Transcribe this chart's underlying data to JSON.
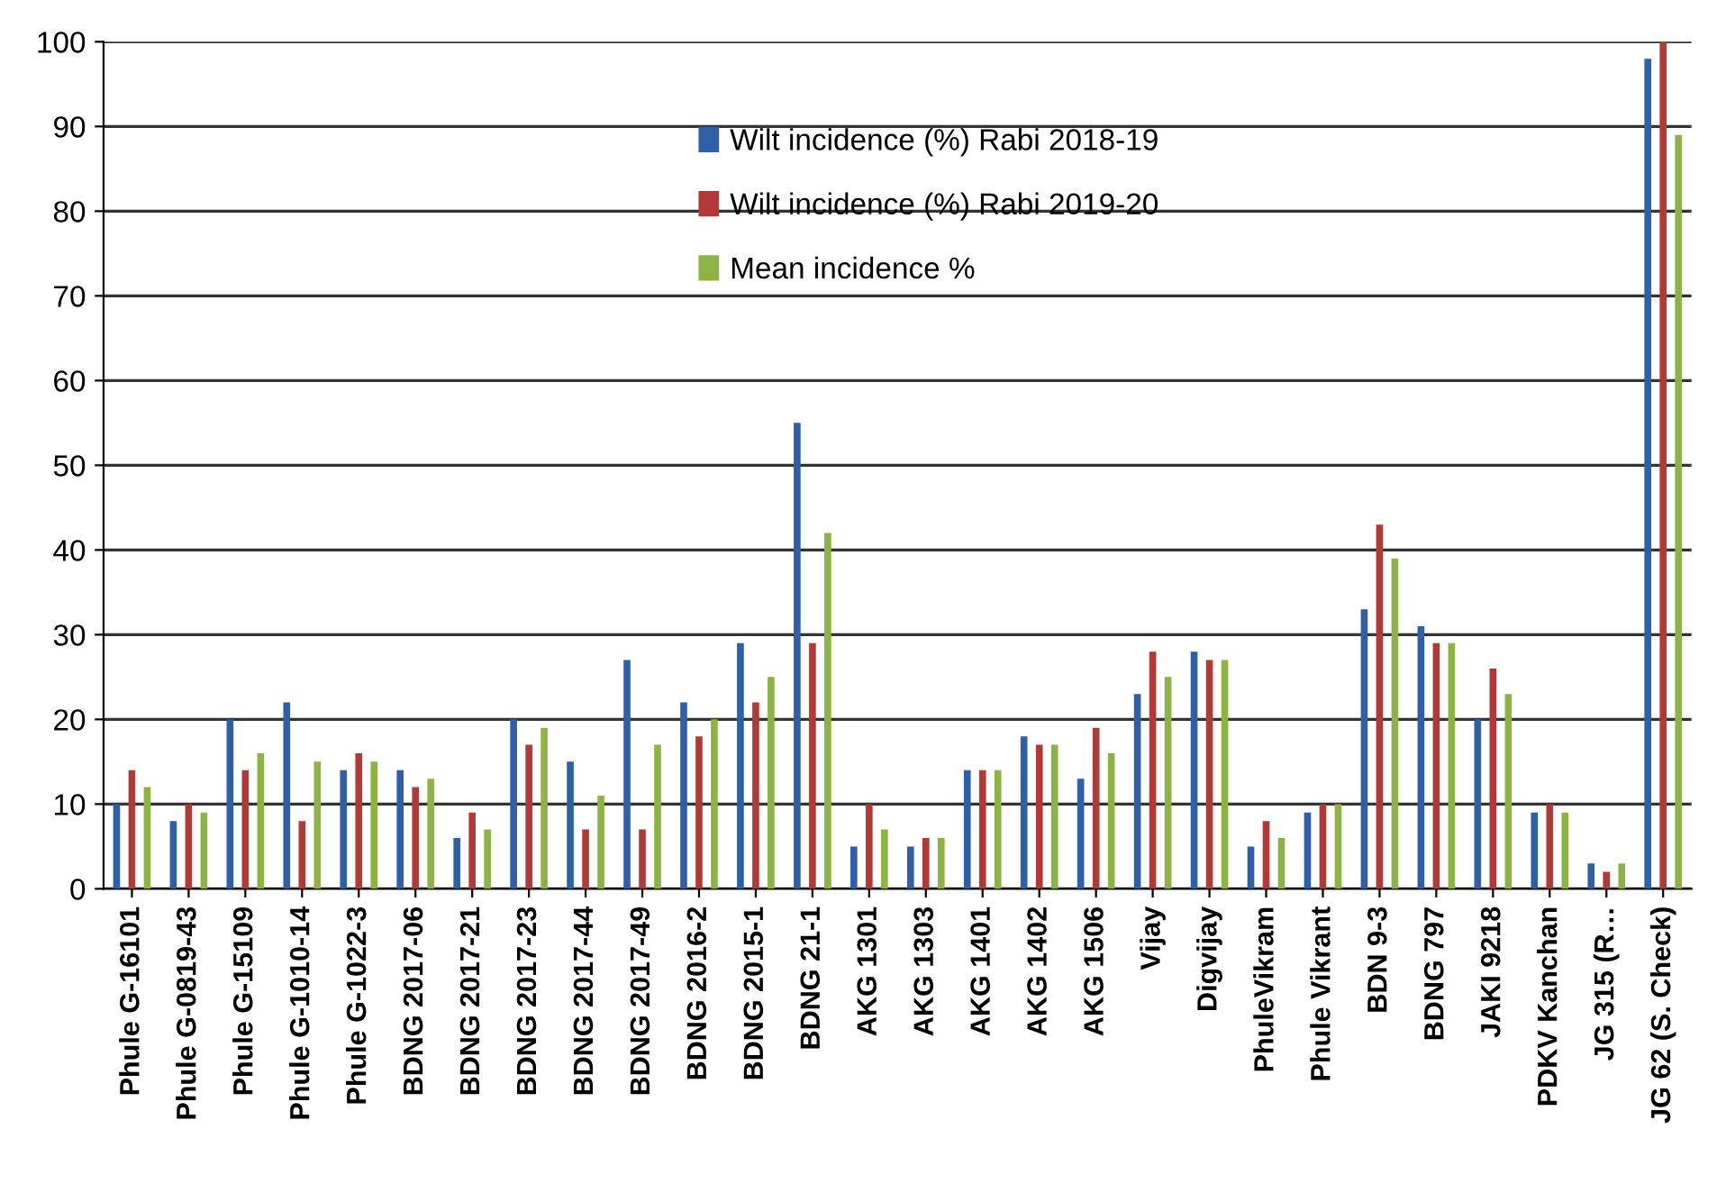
{
  "chart_data": {
    "type": "bar",
    "categories": [
      "Phule G-16101",
      "Phule G-0819-43",
      "Phule G-15109",
      "Phule G-1010-14",
      "Phule G-1022-3",
      "BDNG 2017-06",
      "BDNG 2017-21",
      "BDNG 2017-23",
      "BDNG 2017-44",
      "BDNG 2017-49",
      "BDNG 2016-2",
      "BDNG 2015-1",
      "BDNG 21-1",
      "AKG 1301",
      "AKG 1303",
      "AKG 1401",
      "AKG 1402",
      "AKG 1506",
      "Vijay",
      "Digvijay",
      "PhuleVikram",
      "Phule Vikrant",
      "BDN 9-3",
      "BDNG 797",
      "JAKI 9218",
      "PDKV Kanchan",
      "JG 315 (R…",
      "JG 62 (S. Check)"
    ],
    "series": [
      {
        "name": "Wilt incidence (%) Rabi 2018-19",
        "color": "#2e5fa8",
        "values": [
          10,
          8,
          20,
          22,
          14,
          14,
          6,
          20,
          15,
          27,
          22,
          29,
          55,
          5,
          5,
          14,
          18,
          13,
          23,
          28,
          5,
          9,
          33,
          31,
          20,
          9,
          3,
          98
        ]
      },
      {
        "name": "Wilt incidence (%) Rabi 2019-20",
        "color": "#b23a36",
        "values": [
          14,
          10,
          14,
          8,
          16,
          12,
          9,
          17,
          7,
          7,
          18,
          22,
          29,
          10,
          6,
          14,
          17,
          19,
          28,
          27,
          8,
          10,
          43,
          29,
          26,
          10,
          2,
          100
        ]
      },
      {
        "name": "Mean incidence %",
        "color": "#8db443",
        "values": [
          12,
          9,
          16,
          15,
          15,
          13,
          7,
          19,
          11,
          17,
          20,
          25,
          42,
          7,
          6,
          14,
          17,
          16,
          25,
          27,
          6,
          10,
          39,
          29,
          23,
          9,
          3,
          89
        ]
      }
    ],
    "ylim": [
      0,
      100
    ],
    "yticks": [
      0,
      10,
      20,
      30,
      40,
      50,
      60,
      70,
      80,
      90,
      100
    ],
    "grid": "y",
    "legend": "top"
  }
}
